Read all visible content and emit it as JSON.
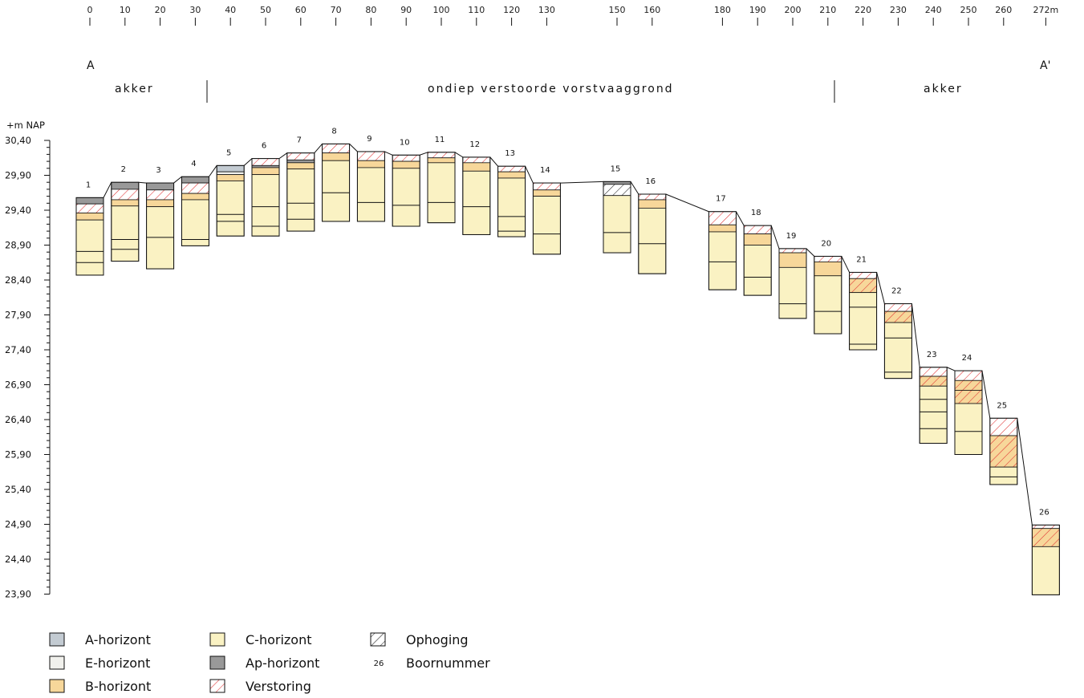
{
  "chart_data": {
    "type": "soil-profile-cross-section",
    "x_axis": {
      "tick_labels": [
        "0",
        "10",
        "20",
        "30",
        "40",
        "50",
        "60",
        "70",
        "80",
        "90",
        "100",
        "110",
        "120",
        "130",
        "150",
        "160",
        "180",
        "190",
        "200",
        "210",
        "220",
        "230",
        "240",
        "250",
        "260",
        "272m"
      ],
      "tick_values": [
        0,
        10,
        20,
        30,
        40,
        50,
        60,
        70,
        80,
        90,
        100,
        110,
        120,
        130,
        150,
        160,
        180,
        190,
        200,
        210,
        220,
        230,
        240,
        250,
        260,
        272
      ]
    },
    "section_start": "A",
    "section_end": "A'",
    "zones": [
      {
        "label": "akker"
      },
      {
        "label": "ondiep verstoorde vorstvaaggrond"
      },
      {
        "label": "akker"
      }
    ],
    "y_axis": {
      "unit": "+m NAP",
      "tick_labels": [
        "30,40",
        "29,90",
        "29,40",
        "28,90",
        "28,40",
        "27,90",
        "27,40",
        "26,90",
        "26,40",
        "25,90",
        "25,40",
        "24,90",
        "24,40",
        "23,90"
      ],
      "range": [
        23.9,
        30.4
      ]
    },
    "colors": {
      "A": "#c3cbd2",
      "E": "#f1f1ed",
      "B": "#f7d79a",
      "C": "#faf2c3",
      "Ap": "#999999",
      "hatch_red": "#e03030",
      "hatch_black": "#222222"
    },
    "borings": [
      {
        "num": "1",
        "x": 0,
        "top": 29.58,
        "layers": [
          [
            "Ap",
            29.58,
            29.49
          ],
          [
            "V",
            29.49,
            29.36
          ],
          [
            "B",
            29.36,
            29.26
          ],
          [
            "C",
            29.26,
            28.47
          ]
        ],
        "lines": [
          28.81,
          28.65
        ]
      },
      {
        "num": "2",
        "x": 10,
        "top": 29.8,
        "layers": [
          [
            "Ap",
            29.8,
            29.7
          ],
          [
            "V",
            29.7,
            29.55
          ],
          [
            "B",
            29.55,
            29.46
          ],
          [
            "C",
            29.46,
            28.67
          ]
        ],
        "lines": [
          28.98,
          28.84
        ]
      },
      {
        "num": "3",
        "x": 20,
        "top": 29.79,
        "layers": [
          [
            "Ap",
            29.79,
            29.69
          ],
          [
            "V",
            29.69,
            29.55
          ],
          [
            "B",
            29.55,
            29.45
          ],
          [
            "C",
            29.45,
            28.56
          ]
        ],
        "lines": [
          29.01
        ]
      },
      {
        "num": "4",
        "x": 30,
        "top": 29.88,
        "layers": [
          [
            "Ap",
            29.88,
            29.79
          ],
          [
            "V",
            29.79,
            29.64
          ],
          [
            "B",
            29.64,
            29.55
          ],
          [
            "C",
            29.55,
            28.89
          ]
        ],
        "lines": [
          28.98
        ]
      },
      {
        "num": "5",
        "x": 40,
        "top": 30.04,
        "layers": [
          [
            "A",
            30.04,
            29.95
          ],
          [
            "E",
            29.95,
            29.91
          ],
          [
            "B",
            29.91,
            29.82
          ],
          [
            "C",
            29.82,
            29.03
          ]
        ],
        "lines": [
          29.34,
          29.24
        ]
      },
      {
        "num": "6",
        "x": 50,
        "top": 30.14,
        "layers": [
          [
            "V",
            30.14,
            30.04
          ],
          [
            "Ap",
            30.04,
            30.01
          ],
          [
            "B",
            30.01,
            29.91
          ],
          [
            "C",
            29.91,
            29.03
          ]
        ],
        "lines": [
          29.45,
          29.17
        ]
      },
      {
        "num": "7",
        "x": 60,
        "top": 30.22,
        "layers": [
          [
            "V",
            30.22,
            30.12
          ],
          [
            "Ap",
            30.12,
            30.08
          ],
          [
            "B",
            30.08,
            29.99
          ],
          [
            "C",
            29.99,
            29.1
          ]
        ],
        "lines": [
          29.5,
          29.27
        ]
      },
      {
        "num": "8",
        "x": 70,
        "top": 30.35,
        "layers": [
          [
            "V",
            30.35,
            30.22
          ],
          [
            "B",
            30.22,
            30.11
          ],
          [
            "C",
            30.11,
            29.24
          ]
        ],
        "lines": [
          29.65
        ]
      },
      {
        "num": "9",
        "x": 80,
        "top": 30.24,
        "layers": [
          [
            "V",
            30.24,
            30.11
          ],
          [
            "B",
            30.11,
            30.01
          ],
          [
            "C",
            30.01,
            29.24
          ]
        ],
        "lines": [
          29.51
        ]
      },
      {
        "num": "10",
        "x": 90,
        "top": 30.19,
        "layers": [
          [
            "V",
            30.19,
            30.1
          ],
          [
            "B",
            30.1,
            30.0
          ],
          [
            "C",
            30.0,
            29.17
          ]
        ],
        "lines": [
          29.47
        ]
      },
      {
        "num": "11",
        "x": 100,
        "top": 30.23,
        "layers": [
          [
            "V",
            30.23,
            30.15
          ],
          [
            "B",
            30.15,
            30.08
          ],
          [
            "C",
            30.08,
            29.22
          ]
        ],
        "lines": [
          29.51
        ]
      },
      {
        "num": "12",
        "x": 110,
        "top": 30.16,
        "layers": [
          [
            "V",
            30.16,
            30.08
          ],
          [
            "B",
            30.08,
            29.96
          ],
          [
            "C",
            29.96,
            29.05
          ]
        ],
        "lines": [
          29.45
        ]
      },
      {
        "num": "13",
        "x": 120,
        "top": 30.03,
        "layers": [
          [
            "V",
            30.03,
            29.95
          ],
          [
            "B",
            29.95,
            29.86
          ],
          [
            "C",
            29.86,
            29.02
          ]
        ],
        "lines": [
          29.31,
          29.1
        ]
      },
      {
        "num": "14",
        "x": 130,
        "top": 29.79,
        "layers": [
          [
            "V",
            29.79,
            29.69
          ],
          [
            "B",
            29.69,
            29.6
          ],
          [
            "C",
            29.6,
            28.77
          ]
        ],
        "lines": [
          29.06
        ]
      },
      {
        "num": "15",
        "x": 150,
        "top": 29.81,
        "layers": [
          [
            "Ap",
            29.81,
            29.77
          ],
          [
            "O",
            29.77,
            29.61
          ],
          [
            "C",
            29.61,
            28.79
          ]
        ],
        "lines": [
          29.08
        ]
      },
      {
        "num": "16",
        "x": 160,
        "top": 29.63,
        "layers": [
          [
            "V",
            29.63,
            29.55
          ],
          [
            "B",
            29.55,
            29.43
          ],
          [
            "C",
            29.43,
            28.49
          ]
        ],
        "lines": [
          28.92
        ]
      },
      {
        "num": "17",
        "x": 180,
        "top": 29.38,
        "layers": [
          [
            "V",
            29.38,
            29.19
          ],
          [
            "B",
            29.19,
            29.09
          ],
          [
            "C",
            29.09,
            28.26
          ]
        ],
        "lines": [
          28.66
        ]
      },
      {
        "num": "18",
        "x": 190,
        "top": 29.18,
        "layers": [
          [
            "V",
            29.18,
            29.06
          ],
          [
            "B",
            29.06,
            28.9
          ],
          [
            "C",
            28.9,
            28.18
          ]
        ],
        "lines": [
          28.44
        ]
      },
      {
        "num": "19",
        "x": 200,
        "top": 28.85,
        "layers": [
          [
            "V",
            28.85,
            28.79
          ],
          [
            "B",
            28.79,
            28.58
          ],
          [
            "C",
            28.58,
            27.85
          ]
        ],
        "lines": [
          28.06
        ]
      },
      {
        "num": "20",
        "x": 210,
        "top": 28.74,
        "layers": [
          [
            "V",
            28.74,
            28.66
          ],
          [
            "B",
            28.66,
            28.46
          ],
          [
            "C",
            28.46,
            27.63
          ]
        ],
        "lines": [
          27.95
        ]
      },
      {
        "num": "21",
        "x": 220,
        "top": 28.51,
        "layers": [
          [
            "V",
            28.51,
            28.42
          ],
          [
            "Vb",
            28.42,
            28.22
          ],
          [
            "C",
            28.22,
            27.4
          ]
        ],
        "lines": [
          27.48,
          28.01
        ]
      },
      {
        "num": "22",
        "x": 230,
        "top": 28.06,
        "layers": [
          [
            "V",
            28.06,
            27.95
          ],
          [
            "Vb",
            27.95,
            27.79
          ],
          [
            "C",
            27.79,
            26.99
          ]
        ],
        "lines": [
          27.57,
          27.08
        ]
      },
      {
        "num": "23",
        "x": 240,
        "top": 27.15,
        "layers": [
          [
            "V",
            27.15,
            27.02
          ],
          [
            "Vb",
            27.02,
            26.88
          ],
          [
            "C",
            26.88,
            26.06
          ]
        ],
        "lines": [
          26.69,
          26.51,
          26.27
        ]
      },
      {
        "num": "24",
        "x": 250,
        "top": 27.1,
        "layers": [
          [
            "V",
            27.1,
            26.96
          ],
          [
            "Vb",
            26.96,
            26.82
          ],
          [
            "Vb",
            26.82,
            26.63
          ],
          [
            "C",
            26.63,
            25.9
          ]
        ],
        "lines": [
          26.23
        ]
      },
      {
        "num": "25",
        "x": 260,
        "top": 26.42,
        "layers": [
          [
            "V",
            26.42,
            26.17
          ],
          [
            "Vb",
            26.17,
            25.72
          ],
          [
            "C",
            25.72,
            25.47
          ]
        ],
        "lines": [
          25.58
        ]
      },
      {
        "num": "26",
        "x": 272,
        "top": 24.89,
        "layers": [
          [
            "V",
            24.89,
            24.84
          ],
          [
            "Vb",
            24.84,
            24.58
          ],
          [
            "C",
            24.58,
            23.89
          ]
        ],
        "lines": []
      }
    ],
    "legend": [
      {
        "key": "A",
        "label": "A-horizont"
      },
      {
        "key": "E",
        "label": "E-horizont"
      },
      {
        "key": "B",
        "label": "B-horizont"
      },
      {
        "key": "C",
        "label": "C-horizont"
      },
      {
        "key": "Ap",
        "label": "Ap-horizont"
      },
      {
        "key": "V",
        "label": "Verstoring"
      },
      {
        "key": "O",
        "label": "Ophoging"
      },
      {
        "key": "num",
        "label": "Boornummer",
        "sample": "26"
      }
    ]
  }
}
